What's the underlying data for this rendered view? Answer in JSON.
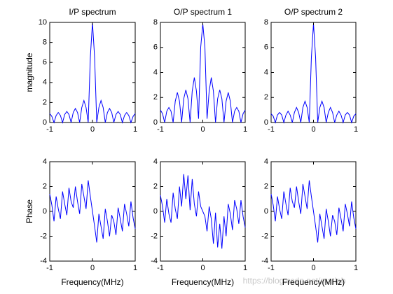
{
  "chart_data": [
    {
      "type": "line",
      "title": "I/P spectrum",
      "y_label": "magnitude",
      "color": "#0000ff",
      "xlim": [
        -1,
        1
      ],
      "ylim": [
        0,
        10
      ],
      "xticks": [
        -1,
        0,
        1
      ],
      "yticks": [
        0,
        2,
        4,
        6,
        8,
        10
      ],
      "x": [
        -1,
        -0.95,
        -0.9,
        -0.85,
        -0.8,
        -0.75,
        -0.7,
        -0.65,
        -0.6,
        -0.55,
        -0.5,
        -0.45,
        -0.4,
        -0.35,
        -0.3,
        -0.25,
        -0.2,
        -0.15,
        -0.1,
        -0.05,
        0,
        0.05,
        0.1,
        0.15,
        0.2,
        0.25,
        0.3,
        0.35,
        0.4,
        0.45,
        0.5,
        0.55,
        0.6,
        0.65,
        0.7,
        0.75,
        0.8,
        0.85,
        0.9,
        0.95,
        1
      ],
      "values": [
        0.9,
        0.6,
        0,
        0.7,
        1.0,
        0.7,
        0,
        0.8,
        1.1,
        0.8,
        0,
        1.0,
        1.4,
        1.0,
        0,
        1.5,
        2.2,
        1.5,
        0,
        6.5,
        10,
        6.5,
        0,
        1.5,
        2.2,
        1.5,
        0,
        1.0,
        1.4,
        1.0,
        0,
        0.8,
        1.1,
        0.8,
        0,
        0.7,
        1.0,
        0.7,
        0,
        0.6,
        0.9
      ]
    },
    {
      "type": "line",
      "title": "O/P spectrum 1",
      "color": "#0000ff",
      "xlim": [
        -1,
        1
      ],
      "ylim": [
        0,
        8
      ],
      "xticks": [
        -1,
        0,
        1
      ],
      "yticks": [
        0,
        2,
        4,
        6,
        8
      ],
      "x": [
        -1,
        -0.95,
        -0.9,
        -0.85,
        -0.8,
        -0.75,
        -0.7,
        -0.65,
        -0.6,
        -0.55,
        -0.5,
        -0.45,
        -0.4,
        -0.35,
        -0.3,
        -0.25,
        -0.2,
        -0.15,
        -0.1,
        -0.05,
        0,
        0.05,
        0.1,
        0.15,
        0.2,
        0.25,
        0.3,
        0.35,
        0.4,
        0.45,
        0.5,
        0.55,
        0.6,
        0.65,
        0.7,
        0.75,
        0.8,
        0.85,
        0.9,
        0.95,
        1
      ],
      "values": [
        1.0,
        0.7,
        0,
        0.9,
        1.2,
        0.9,
        0,
        1.7,
        2.4,
        1.7,
        0,
        1.9,
        2.6,
        1.9,
        0,
        2.5,
        3.6,
        2.5,
        0.3,
        6.0,
        7.9,
        6.0,
        0.3,
        2.5,
        3.6,
        2.5,
        0,
        1.9,
        2.6,
        1.9,
        0,
        1.7,
        2.4,
        1.7,
        0,
        0.9,
        1.2,
        0.9,
        0,
        0.7,
        1.0
      ]
    },
    {
      "type": "line",
      "title": "O/P spectrum 2",
      "color": "#0000ff",
      "xlim": [
        -1,
        1
      ],
      "ylim": [
        0,
        8
      ],
      "xticks": [
        -1,
        0,
        1
      ],
      "yticks": [
        0,
        2,
        4,
        6,
        8
      ],
      "x": [
        -1,
        -0.95,
        -0.9,
        -0.85,
        -0.8,
        -0.75,
        -0.7,
        -0.65,
        -0.6,
        -0.55,
        -0.5,
        -0.45,
        -0.4,
        -0.35,
        -0.3,
        -0.25,
        -0.2,
        -0.15,
        -0.1,
        -0.05,
        0,
        0.05,
        0.1,
        0.15,
        0.2,
        0.25,
        0.3,
        0.35,
        0.4,
        0.45,
        0.5,
        0.55,
        0.6,
        0.65,
        0.7,
        0.75,
        0.8,
        0.85,
        0.9,
        0.95,
        1
      ],
      "values": [
        0.7,
        0.5,
        0,
        0.6,
        0.8,
        0.6,
        0,
        0.6,
        0.9,
        0.6,
        0,
        0.8,
        1.2,
        0.8,
        0,
        1.2,
        1.7,
        1.2,
        0,
        5.2,
        7.9,
        5.2,
        0,
        1.2,
        1.7,
        1.2,
        0,
        0.8,
        1.2,
        0.8,
        0,
        0.6,
        0.9,
        0.6,
        0,
        0.6,
        0.8,
        0.6,
        0,
        0.5,
        0.7
      ]
    },
    {
      "type": "line",
      "y_label": "Phase",
      "x_label": "Frequency(MHz)",
      "color": "#0000ff",
      "xlim": [
        -1,
        1
      ],
      "ylim": [
        -4,
        4
      ],
      "xticks": [
        -1,
        0,
        1
      ],
      "yticks": [
        -4,
        -2,
        0,
        2,
        4
      ],
      "x": [
        -1,
        -0.95,
        -0.9,
        -0.85,
        -0.8,
        -0.75,
        -0.7,
        -0.65,
        -0.6,
        -0.55,
        -0.5,
        -0.45,
        -0.4,
        -0.35,
        -0.3,
        -0.25,
        -0.2,
        -0.15,
        -0.1,
        -0.05,
        0,
        0.05,
        0.1,
        0.15,
        0.2,
        0.25,
        0.3,
        0.35,
        0.4,
        0.45,
        0.5,
        0.55,
        0.6,
        0.65,
        0.7,
        0.75,
        0.8,
        0.85,
        0.9,
        0.95,
        1
      ],
      "values": [
        1.4,
        0.5,
        -0.8,
        1.2,
        0.2,
        -0.6,
        1.6,
        0.6,
        -0.3,
        1.9,
        0.8,
        0.3,
        2.0,
        0.8,
        -0.2,
        2.2,
        1.2,
        0.2,
        2.5,
        1.2,
        0.0,
        -1.2,
        -2.5,
        -0.2,
        -1.2,
        -2.2,
        0.2,
        -0.8,
        -2.0,
        -0.3,
        -0.8,
        -1.9,
        0.3,
        -0.6,
        -1.6,
        0.6,
        -0.2,
        -1.2,
        0.8,
        -0.5,
        -1.4
      ]
    },
    {
      "type": "line",
      "x_label": "Frequency(MHz)",
      "color": "#0000ff",
      "xlim": [
        -1,
        1
      ],
      "ylim": [
        -4,
        4
      ],
      "xticks": [
        -1,
        0,
        1
      ],
      "yticks": [
        -4,
        -2,
        0,
        2,
        4
      ],
      "x": [
        -1,
        -0.95,
        -0.9,
        -0.85,
        -0.8,
        -0.75,
        -0.7,
        -0.65,
        -0.6,
        -0.55,
        -0.5,
        -0.45,
        -0.4,
        -0.35,
        -0.3,
        -0.25,
        -0.2,
        -0.15,
        -0.1,
        -0.05,
        0,
        0.05,
        0.1,
        0.15,
        0.2,
        0.25,
        0.3,
        0.35,
        0.4,
        0.45,
        0.5,
        0.55,
        0.6,
        0.65,
        0.7,
        0.75,
        0.8,
        0.85,
        0.9,
        0.95,
        1
      ],
      "values": [
        1.3,
        0.4,
        -0.9,
        1.0,
        -0.2,
        -0.9,
        1.5,
        0.2,
        -0.6,
        2.0,
        0.4,
        3.0,
        1.0,
        2.9,
        0.1,
        2.6,
        0.6,
        -0.4,
        1.6,
        0.4,
        0.0,
        -0.4,
        -1.6,
        0.4,
        -0.6,
        -2.6,
        -0.1,
        -2.9,
        -1.0,
        -3.0,
        -0.4,
        -2.0,
        0.6,
        -0.2,
        -1.5,
        0.9,
        0.2,
        -1.0,
        0.9,
        -0.4,
        -1.3
      ]
    },
    {
      "type": "line",
      "x_label": "Frequency(MHz)",
      "color": "#0000ff",
      "xlim": [
        -1,
        1
      ],
      "ylim": [
        -4,
        4
      ],
      "xticks": [
        -1,
        0,
        1
      ],
      "yticks": [
        -4,
        -2,
        0,
        2,
        4
      ],
      "x": [
        -1,
        -0.95,
        -0.9,
        -0.85,
        -0.8,
        -0.75,
        -0.7,
        -0.65,
        -0.6,
        -0.55,
        -0.5,
        -0.45,
        -0.4,
        -0.35,
        -0.3,
        -0.25,
        -0.2,
        -0.15,
        -0.1,
        -0.05,
        0,
        0.05,
        0.1,
        0.15,
        0.2,
        0.25,
        0.3,
        0.35,
        0.4,
        0.45,
        0.5,
        0.55,
        0.6,
        0.65,
        0.7,
        0.75,
        0.8,
        0.85,
        0.9,
        0.95,
        1
      ],
      "values": [
        1.4,
        0.5,
        -0.8,
        1.2,
        0.2,
        -0.6,
        1.6,
        0.6,
        -0.3,
        1.9,
        0.8,
        0.3,
        2.0,
        0.8,
        -0.2,
        2.2,
        1.2,
        0.2,
        2.5,
        1.2,
        0.0,
        -1.2,
        -2.5,
        -0.2,
        -1.2,
        -2.2,
        0.2,
        -0.8,
        -2.0,
        -0.3,
        -0.8,
        -1.9,
        0.3,
        -0.6,
        -1.6,
        0.6,
        -0.2,
        -1.2,
        0.8,
        -0.5,
        -1.4
      ]
    }
  ],
  "watermark": "https://blog.csdn.net/matlab"
}
